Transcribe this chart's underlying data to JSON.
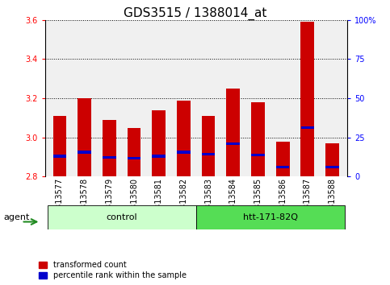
{
  "title": "GDS3515 / 1388014_at",
  "samples": [
    "GSM313577",
    "GSM313578",
    "GSM313579",
    "GSM313580",
    "GSM313581",
    "GSM313582",
    "GSM313583",
    "GSM313584",
    "GSM313585",
    "GSM313586",
    "GSM313587",
    "GSM313588"
  ],
  "bar_values": [
    3.11,
    3.2,
    3.09,
    3.05,
    3.14,
    3.19,
    3.11,
    3.25,
    3.18,
    2.98,
    3.59,
    2.97
  ],
  "percentile_values": [
    2.905,
    2.925,
    2.9,
    2.895,
    2.905,
    2.925,
    2.915,
    2.97,
    2.91,
    2.85,
    3.05,
    2.85
  ],
  "ymin": 2.8,
  "ymax": 3.6,
  "yticks": [
    2.8,
    3.0,
    3.2,
    3.4,
    3.6
  ],
  "right_yticks": [
    0,
    25,
    50,
    75,
    100
  ],
  "bar_color": "#cc0000",
  "percentile_color": "#0000cc",
  "bar_width": 0.55,
  "legend_items": [
    {
      "color": "#cc0000",
      "label": "transformed count"
    },
    {
      "color": "#0000cc",
      "label": "percentile rank within the sample"
    }
  ],
  "plot_bg_color": "#f0f0f0",
  "title_fontsize": 11,
  "tick_fontsize": 7,
  "label_fontsize": 8
}
